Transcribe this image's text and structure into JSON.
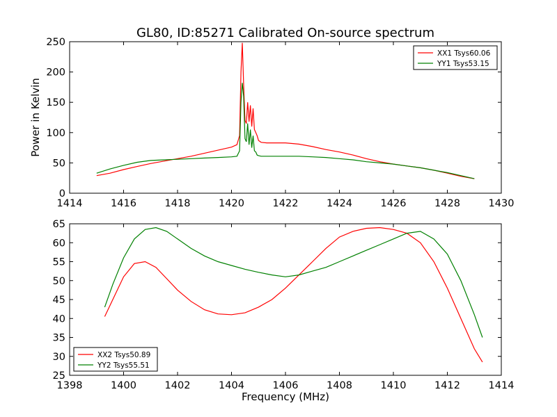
{
  "chart_data": [
    {
      "type": "line",
      "title": "GL80, ID:85271 Calibrated On-source spectrum",
      "xlabel": "",
      "ylabel": "Power in Kelvin",
      "xlim": [
        1414,
        1430
      ],
      "ylim": [
        0,
        250
      ],
      "xticks": [
        1414,
        1416,
        1418,
        1420,
        1422,
        1424,
        1426,
        1428,
        1430
      ],
      "yticks": [
        0,
        50,
        100,
        150,
        200,
        250
      ],
      "grid": false,
      "legend_position": "top-right",
      "series": [
        {
          "name": "XX1 Tsys60.06",
          "color": "#ff0000",
          "x": [
            1415,
            1415.5,
            1416,
            1416.5,
            1417,
            1417.5,
            1418,
            1418.5,
            1419,
            1419.5,
            1420,
            1420.2,
            1420.3,
            1420.35,
            1420.4,
            1420.45,
            1420.5,
            1420.55,
            1420.6,
            1420.65,
            1420.7,
            1420.75,
            1420.8,
            1420.85,
            1420.9,
            1420.95,
            1421,
            1421.1,
            1421.3,
            1421.5,
            1422,
            1422.5,
            1423,
            1423.5,
            1424,
            1424.5,
            1425,
            1425.5,
            1426,
            1426.5,
            1427,
            1427.5,
            1428,
            1428.5,
            1429
          ],
          "y": [
            29,
            33,
            39,
            44,
            49,
            53,
            57,
            61,
            66,
            71,
            76,
            80,
            95,
            200,
            248,
            180,
            120,
            115,
            150,
            118,
            145,
            110,
            140,
            105,
            100,
            95,
            87,
            84,
            83,
            83,
            83,
            81,
            77,
            72,
            68,
            63,
            57,
            52,
            48,
            45,
            42,
            38,
            33,
            28,
            24
          ]
        },
        {
          "name": "YY1 Tsys53.15",
          "color": "#008000",
          "x": [
            1415,
            1415.5,
            1416,
            1416.5,
            1417,
            1417.5,
            1418,
            1418.5,
            1419,
            1419.5,
            1420,
            1420.2,
            1420.3,
            1420.35,
            1420.4,
            1420.45,
            1420.5,
            1420.55,
            1420.6,
            1420.65,
            1420.7,
            1420.75,
            1420.8,
            1420.85,
            1420.9,
            1420.95,
            1421,
            1421.1,
            1421.3,
            1421.5,
            1422,
            1422.5,
            1423,
            1423.5,
            1424,
            1424.5,
            1425,
            1425.5,
            1426,
            1426.5,
            1427,
            1427.5,
            1428,
            1428.5,
            1429
          ],
          "y": [
            33,
            40,
            46,
            51,
            54,
            55,
            56,
            57,
            58,
            59,
            60,
            61,
            70,
            150,
            182,
            160,
            90,
            85,
            115,
            80,
            105,
            75,
            95,
            70,
            68,
            63,
            62,
            61,
            61,
            61,
            61,
            61,
            60,
            59,
            57,
            55,
            52,
            50,
            48,
            45,
            42,
            38,
            34,
            29,
            24
          ]
        }
      ]
    },
    {
      "type": "line",
      "title": "",
      "xlabel": "Frequency (MHz)",
      "ylabel": "",
      "xlim": [
        1398,
        1414
      ],
      "ylim": [
        25,
        65
      ],
      "xticks": [
        1398,
        1400,
        1402,
        1404,
        1406,
        1408,
        1410,
        1412,
        1414
      ],
      "yticks": [
        25,
        30,
        35,
        40,
        45,
        50,
        55,
        60,
        65
      ],
      "grid": false,
      "legend_position": "bottom-left",
      "series": [
        {
          "name": "XX2 Tsys50.89",
          "color": "#ff0000",
          "x": [
            1399.3,
            1399.6,
            1400,
            1400.4,
            1400.8,
            1401.2,
            1401.6,
            1402,
            1402.5,
            1403,
            1403.5,
            1404,
            1404.5,
            1405,
            1405.5,
            1406,
            1406.5,
            1407,
            1407.5,
            1408,
            1408.5,
            1409,
            1409.5,
            1410,
            1410.5,
            1411,
            1411.5,
            1412,
            1412.5,
            1413,
            1413.3
          ],
          "y": [
            40.5,
            45,
            51,
            54.5,
            55,
            53.5,
            50.5,
            47.5,
            44.5,
            42.3,
            41.2,
            41,
            41.5,
            43,
            45,
            48,
            51.5,
            55,
            58.5,
            61.5,
            63,
            63.8,
            64,
            63.5,
            62.5,
            60,
            55,
            48,
            40,
            32,
            28.5
          ]
        },
        {
          "name": "YY2 Tsys55.51",
          "color": "#008000",
          "x": [
            1399.3,
            1399.6,
            1400,
            1400.4,
            1400.8,
            1401.2,
            1401.6,
            1402,
            1402.5,
            1403,
            1403.5,
            1404,
            1404.5,
            1405,
            1405.5,
            1406,
            1406.5,
            1407,
            1407.5,
            1408,
            1408.5,
            1409,
            1409.5,
            1410,
            1410.5,
            1411,
            1411.5,
            1412,
            1412.5,
            1413,
            1413.3
          ],
          "y": [
            43,
            49,
            56,
            61,
            63.5,
            64,
            63,
            61,
            58.5,
            56.5,
            55,
            54,
            53,
            52.2,
            51.5,
            51,
            51.5,
            52.5,
            53.5,
            55,
            56.5,
            58,
            59.5,
            61,
            62.5,
            63,
            61,
            57,
            50,
            41,
            35
          ]
        }
      ]
    }
  ]
}
